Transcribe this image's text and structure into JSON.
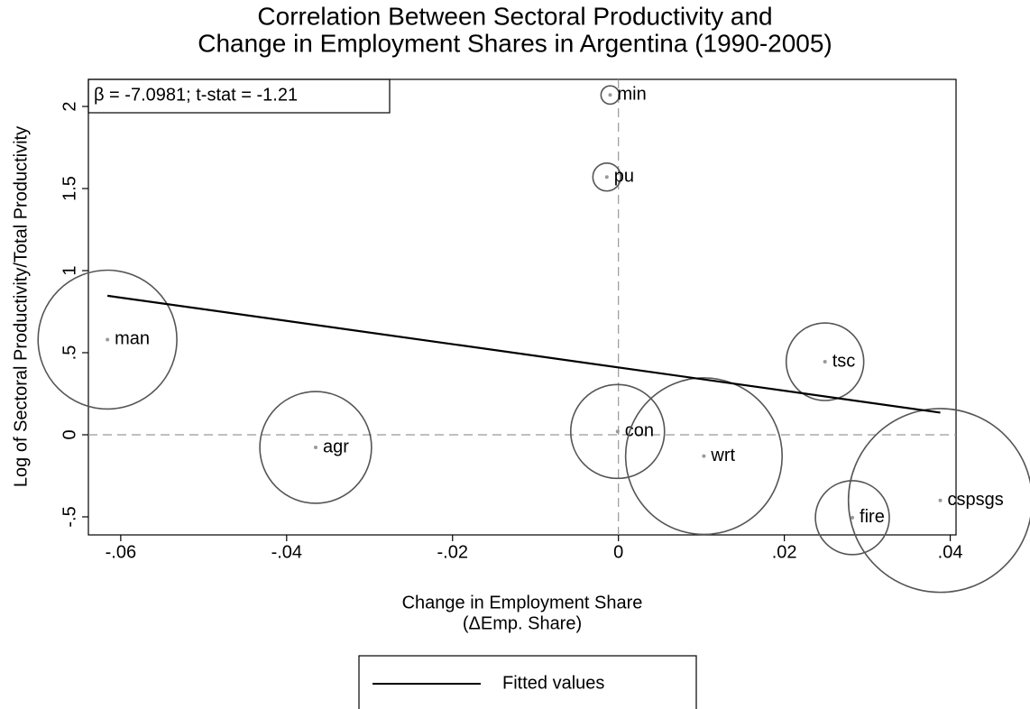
{
  "chart_data": {
    "type": "scatter",
    "title": [
      "Correlation Between Sectoral Productivity and",
      "Change in Employment Shares in Argentina (1990-2005)"
    ],
    "x_label": [
      "Change in Employment Share",
      "(ΔEmp. Share)"
    ],
    "y_label": "Log of Sectoral Productivity/Total Productivity",
    "annotation": "β =  -7.0981; t-stat = -1.21",
    "xlim": [
      -0.0639,
      0.0407
    ],
    "ylim": [
      -0.61,
      2.165
    ],
    "xticks": [
      {
        "value": -0.06,
        "label": "-.06"
      },
      {
        "value": -0.04,
        "label": "-.04"
      },
      {
        "value": -0.02,
        "label": "-.02"
      },
      0,
      {
        "value": 0.02,
        "label": ".02"
      },
      {
        "value": 0.04,
        "label": ".04"
      }
    ],
    "yticks": [
      {
        "value": -0.5,
        "label": "-.5"
      },
      0,
      {
        "value": 0.5,
        "label": ".5"
      },
      1,
      {
        "value": 1.5,
        "label": "1.5"
      },
      2
    ],
    "ref_x": 0,
    "ref_y": 0,
    "points": {
      "labels": [
        "man",
        "agr",
        "min",
        "pu",
        "con",
        "wrt",
        "tsc",
        "fire",
        "cspsgs"
      ],
      "x": [
        -0.0616,
        -0.0365,
        -0.001,
        -0.0014,
        -0.0001,
        0.0103,
        0.0249,
        0.0282,
        0.0388
      ],
      "values": [
        0.58,
        -0.077,
        2.07,
        1.57,
        0.02,
        -0.13,
        0.445,
        -0.505,
        -0.4
      ],
      "sizes": [
        17.3,
        11.2,
        0.3,
        0.7,
        7.9,
        22.0,
        5.4,
        4.9,
        30.3
      ],
      "color": "#555555",
      "dot_color": "#999999"
    },
    "fit": {
      "name": "Fitted values",
      "x": [
        -0.0616,
        0.0388
      ],
      "values": [
        0.847,
        0.135
      ],
      "color": "#000000"
    }
  }
}
